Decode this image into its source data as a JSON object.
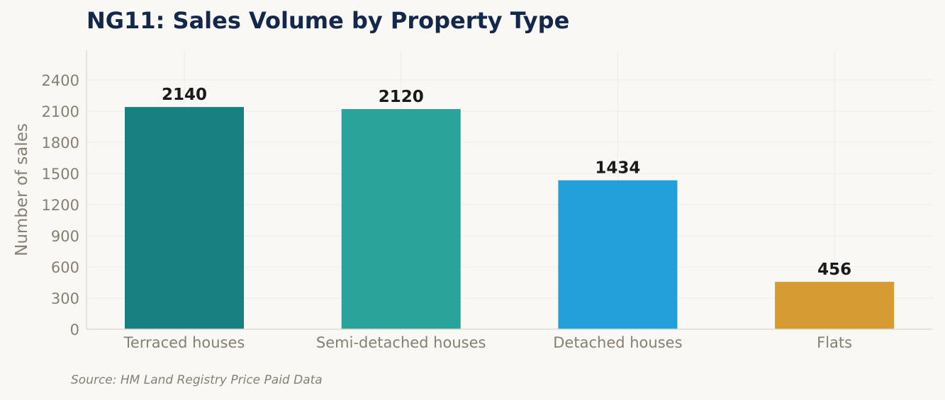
{
  "chart_data": {
    "type": "bar",
    "title": "NG11: Sales Volume by Property Type",
    "xlabel": "",
    "ylabel": "Number of sales",
    "categories": [
      "Terraced houses",
      "Semi-detached houses",
      "Detached houses",
      "Flats"
    ],
    "values": [
      2140,
      2120,
      1434,
      456
    ],
    "value_labels": [
      "2140",
      "2120",
      "1434",
      "456"
    ],
    "colors": [
      "#177f7e",
      "#2aa39b",
      "#239fda",
      "#d79b33"
    ],
    "ylim": [
      0,
      2680
    ],
    "yticks": [
      0,
      300,
      600,
      900,
      1200,
      1500,
      1800,
      2100,
      2400
    ],
    "ytick_labels": [
      "0",
      "300",
      "600",
      "900",
      "1200",
      "1500",
      "1800",
      "2100",
      "2400"
    ],
    "grid": true,
    "legend": "none"
  },
  "source": "Source: HM Land Registry Price Paid Data",
  "style": {
    "background": "#f9f8f4",
    "title_color": "#14284b",
    "axis_text_color": "#858073",
    "value_label_color": "#1a1a1a",
    "grid_color": "#efece4",
    "axis_color": "#dedad0"
  }
}
